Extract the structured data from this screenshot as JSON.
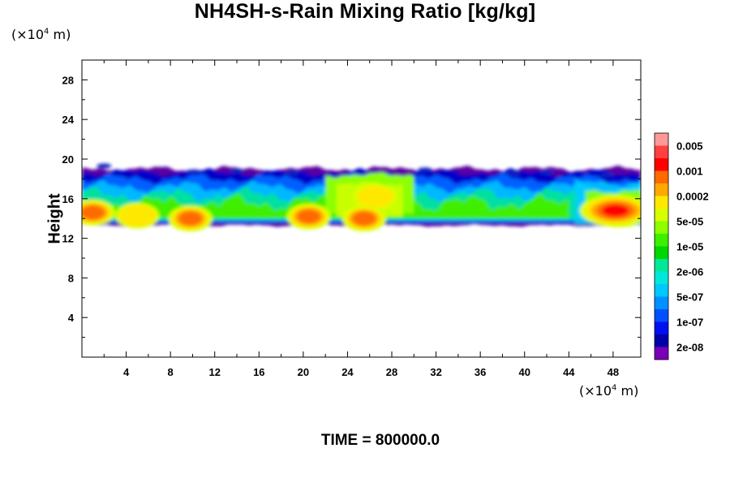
{
  "chart_data": {
    "type": "heatmap",
    "title": "NH4SH-s-Rain Mixing Ratio [kg/kg]",
    "xlabel": "",
    "ylabel": "Height",
    "x_unit_prefix": "(×10",
    "x_unit_exp": "4",
    "x_unit_suffix": " m)",
    "y_unit_prefix": "(×10",
    "y_unit_exp": "4",
    "y_unit_suffix": " m)",
    "xlim": [
      0,
      50.5
    ],
    "ylim": [
      0,
      30
    ],
    "x_ticks": [
      "4",
      "8",
      "12",
      "16",
      "20",
      "24",
      "28",
      "32",
      "36",
      "40",
      "44",
      "48"
    ],
    "y_ticks": [
      "4",
      "8",
      "12",
      "16",
      "20",
      "24",
      "28"
    ],
    "layer_bottom": 13.5,
    "layer_top": 19,
    "colorbar": {
      "labels": [
        "0.005",
        "0.001",
        "0.0002",
        "5e-05",
        "1e-05",
        "2e-06",
        "5e-07",
        "1e-07",
        "2e-08"
      ],
      "colors": [
        "#ff9898",
        "#ff4040",
        "#ff0000",
        "#ff6a00",
        "#ffa800",
        "#ffe800",
        "#d8ff00",
        "#8cff00",
        "#3cf000",
        "#00d600",
        "#00e898",
        "#00e8d8",
        "#00c8ff",
        "#0090ff",
        "#0050ff",
        "#0010f0",
        "#0000a8",
        "#7a00b8"
      ]
    },
    "hotspots": [
      {
        "x": 1,
        "y": 14.6,
        "level": "0.0002"
      },
      {
        "x": 5,
        "y": 14.3,
        "level": "5e-05"
      },
      {
        "x": 9.8,
        "y": 14.0,
        "level": "0.0002"
      },
      {
        "x": 20.5,
        "y": 14.2,
        "level": "0.0002"
      },
      {
        "x": 25.5,
        "y": 14.0,
        "level": "0.0002"
      },
      {
        "x": 26.5,
        "y": 16.2,
        "level": "5e-05"
      },
      {
        "x": 48.5,
        "y": 14.8,
        "level": "0.001"
      }
    ]
  },
  "time_label": "TIME = 800000.0"
}
